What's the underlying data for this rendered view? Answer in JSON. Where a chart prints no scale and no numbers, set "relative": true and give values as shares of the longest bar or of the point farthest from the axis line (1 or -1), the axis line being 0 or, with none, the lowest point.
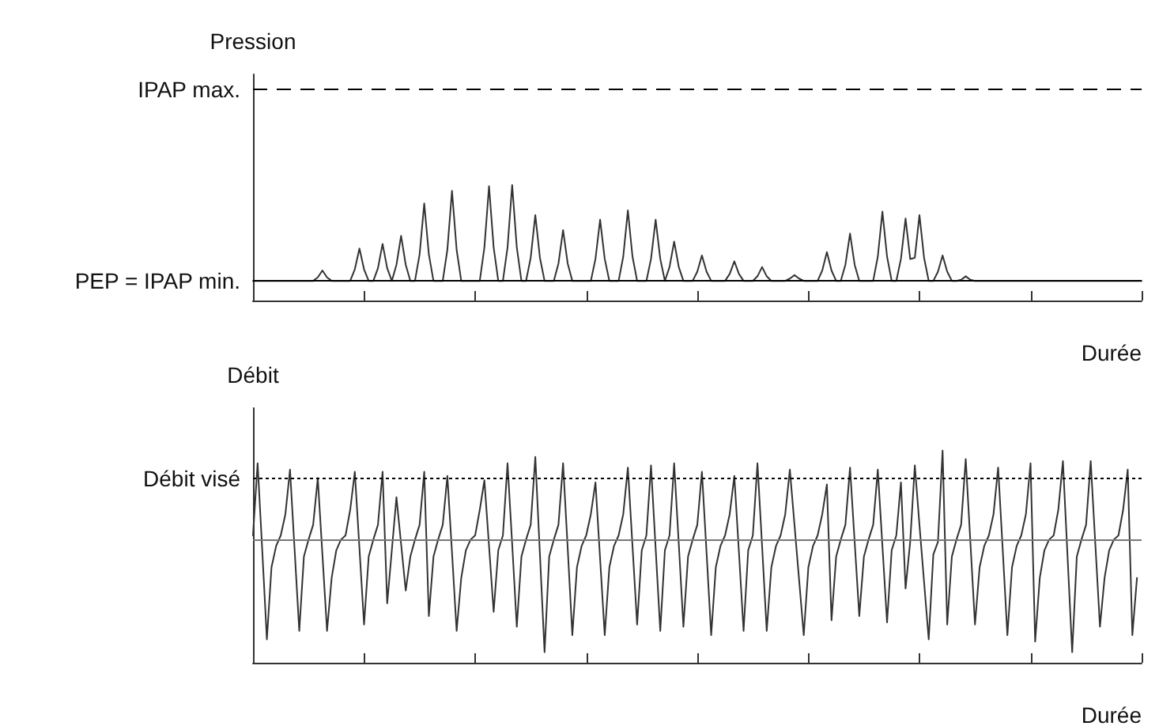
{
  "chart_data": [
    {
      "type": "line",
      "relative": true,
      "ylabel": "Pression",
      "xlabel": "Durée",
      "marker": "none",
      "categories": [
        null,
        null,
        null,
        null,
        null,
        null,
        null,
        null,
        null,
        null,
        null,
        null,
        null,
        null,
        null,
        null,
        null,
        null,
        null,
        null,
        null,
        null,
        null,
        null,
        null,
        null,
        null,
        null,
        null,
        null,
        null,
        null,
        null,
        null,
        null,
        null,
        null,
        null,
        null,
        null,
        null,
        null,
        null,
        null,
        null,
        null,
        null,
        null,
        null,
        null,
        null,
        null,
        null,
        null,
        null,
        null,
        null,
        null,
        null,
        null,
        null,
        null,
        null,
        null,
        null,
        null,
        null,
        null,
        null,
        null,
        null,
        null,
        null,
        null,
        null,
        null,
        null,
        null,
        null,
        null,
        null,
        null,
        null,
        null,
        null,
        null,
        null,
        null,
        null,
        null,
        null,
        null,
        null,
        null,
        null,
        null,
        null,
        null,
        null,
        null,
        null,
        null,
        null,
        null,
        null,
        null,
        null,
        null,
        null,
        null,
        null,
        null,
        null,
        null,
        null,
        null,
        null,
        null,
        null,
        null,
        null,
        null,
        null,
        null,
        null,
        null,
        null,
        null,
        null,
        null,
        null,
        null,
        null,
        null,
        null,
        null,
        null,
        null,
        null,
        null,
        null,
        null,
        null,
        null,
        null,
        null,
        null,
        null,
        null,
        null,
        null,
        null,
        null,
        null,
        null,
        null,
        null,
        null,
        null,
        null,
        null,
        null,
        null,
        null,
        null,
        null,
        null,
        null,
        null,
        null,
        null,
        null,
        null,
        null,
        null,
        null,
        null,
        null,
        null,
        null,
        null,
        null,
        null,
        null,
        null,
        null,
        null,
        null,
        null,
        null,
        null,
        null,
        null
      ],
      "ref_lines": [
        {
          "axis": "y",
          "value": 1.83,
          "label": "IPAP max.",
          "line_style": "dashed",
          "color": "#000000"
        },
        {
          "axis": "y",
          "value": 0.17,
          "label": "PEP = IPAP min.",
          "color": "#000000"
        }
      ],
      "series": [
        {
          "color": "#333333",
          "values": [
            0.17,
            0.17,
            0.17,
            0.17,
            0.17,
            0.17,
            0.17,
            0.17,
            0.17,
            0.17,
            0.17,
            0.17,
            0.17,
            0.17,
            0.2,
            0.26,
            0.2,
            0.17,
            0.17,
            0.17,
            0.17,
            0.17,
            0.27,
            0.45,
            0.27,
            0.17,
            0.17,
            0.28,
            0.49,
            0.28,
            0.17,
            0.31,
            0.56,
            0.31,
            0.17,
            0.17,
            0.4,
            0.84,
            0.4,
            0.17,
            0.17,
            0.17,
            0.44,
            0.95,
            0.44,
            0.17,
            0.17,
            0.17,
            0.17,
            0.17,
            0.46,
            0.99,
            0.46,
            0.17,
            0.17,
            0.46,
            1.0,
            0.46,
            0.17,
            0.17,
            0.37,
            0.74,
            0.37,
            0.17,
            0.17,
            0.17,
            0.32,
            0.61,
            0.32,
            0.17,
            0.17,
            0.17,
            0.17,
            0.17,
            0.36,
            0.7,
            0.36,
            0.17,
            0.17,
            0.17,
            0.38,
            0.78,
            0.38,
            0.17,
            0.17,
            0.17,
            0.36,
            0.7,
            0.36,
            0.17,
            0.29,
            0.51,
            0.29,
            0.17,
            0.17,
            0.17,
            0.25,
            0.39,
            0.25,
            0.17,
            0.17,
            0.17,
            0.17,
            0.23,
            0.34,
            0.23,
            0.17,
            0.17,
            0.17,
            0.21,
            0.29,
            0.21,
            0.17,
            0.17,
            0.17,
            0.17,
            0.19,
            0.22,
            0.19,
            0.17,
            0.17,
            0.17,
            0.17,
            0.26,
            0.42,
            0.26,
            0.17,
            0.17,
            0.31,
            0.58,
            0.31,
            0.17,
            0.17,
            0.17,
            0.17,
            0.38,
            0.77,
            0.38,
            0.17,
            0.17,
            0.36,
            0.71,
            0.36,
            0.37,
            0.74,
            0.37,
            0.17,
            0.17,
            0.25,
            0.39,
            0.25,
            0.17,
            0.17,
            0.18,
            0.21,
            0.18,
            0.17,
            0.17,
            0.17,
            0.17,
            0.17,
            0.17,
            0.17,
            0.17,
            0.17,
            0.17,
            0.17,
            0.17,
            0.17,
            0.17,
            0.17,
            0.17,
            0.17,
            0.17,
            0.17,
            0.17,
            0.17,
            0.17,
            0.17,
            0.17,
            0.17,
            0.17,
            0.17,
            0.17,
            0.17,
            0.17,
            0.17,
            0.17,
            0.17,
            0.17,
            0.17,
            0.17,
            0.17
          ]
        }
      ]
    },
    {
      "type": "line",
      "relative": true,
      "ylabel": "Débit",
      "xlabel": "Durée",
      "marker": "none",
      "categories": [
        null,
        null,
        null,
        null,
        null,
        null,
        null,
        null,
        null,
        null,
        null,
        null,
        null,
        null,
        null,
        null,
        null,
        null,
        null,
        null,
        null,
        null,
        null,
        null,
        null,
        null,
        null,
        null,
        null,
        null,
        null,
        null,
        null,
        null,
        null,
        null,
        null,
        null,
        null,
        null,
        null,
        null,
        null,
        null,
        null,
        null,
        null,
        null,
        null,
        null,
        null,
        null,
        null,
        null,
        null,
        null,
        null,
        null,
        null,
        null,
        null,
        null,
        null,
        null,
        null,
        null,
        null,
        null,
        null,
        null,
        null,
        null,
        null,
        null,
        null,
        null,
        null,
        null,
        null,
        null,
        null,
        null,
        null,
        null,
        null,
        null,
        null,
        null,
        null,
        null,
        null,
        null,
        null,
        null,
        null,
        null,
        null,
        null,
        null,
        null,
        null,
        null,
        null,
        null,
        null,
        null,
        null,
        null,
        null,
        null,
        null,
        null,
        null,
        null,
        null,
        null,
        null,
        null,
        null,
        null,
        null,
        null,
        null,
        null,
        null,
        null,
        null,
        null,
        null,
        null,
        null,
        null,
        null,
        null,
        null,
        null,
        null,
        null,
        null,
        null,
        null,
        null,
        null,
        null,
        null,
        null,
        null,
        null,
        null,
        null,
        null,
        null,
        null,
        null,
        null,
        null,
        null,
        null,
        null,
        null,
        null,
        null,
        null,
        null,
        null,
        null,
        null,
        null,
        null,
        null,
        null,
        null,
        null,
        null,
        null,
        null,
        null,
        null,
        null,
        null,
        null,
        null,
        null,
        null,
        null,
        null,
        null,
        null,
        null,
        null,
        null,
        null,
        null
      ],
      "ref_lines": [
        {
          "axis": "y",
          "value": 0.58,
          "color": "#777777"
        },
        {
          "axis": "y",
          "value": 0.87,
          "label": "Débit visé",
          "line_style": "dotted",
          "color": "#000000"
        }
      ],
      "series": [
        {
          "color": "#333333",
          "values": [
            0.6,
            0.94,
            0.53,
            0.11,
            0.45,
            0.55,
            0.6,
            0.7,
            0.91,
            0.53,
            0.15,
            0.5,
            0.58,
            0.65,
            0.87,
            0.51,
            0.15,
            0.4,
            0.53,
            0.58,
            0.6,
            0.72,
            0.9,
            0.54,
            0.18,
            0.5,
            0.58,
            0.65,
            0.9,
            0.28,
            0.53,
            0.78,
            0.56,
            0.34,
            0.5,
            0.58,
            0.65,
            0.9,
            0.22,
            0.5,
            0.58,
            0.65,
            0.88,
            0.52,
            0.15,
            0.4,
            0.53,
            0.58,
            0.6,
            0.72,
            0.86,
            0.55,
            0.24,
            0.53,
            0.6,
            0.94,
            0.56,
            0.17,
            0.5,
            0.58,
            0.65,
            0.97,
            0.51,
            0.05,
            0.5,
            0.58,
            0.65,
            0.94,
            0.54,
            0.13,
            0.45,
            0.55,
            0.6,
            0.7,
            0.85,
            0.49,
            0.13,
            0.45,
            0.55,
            0.6,
            0.7,
            0.92,
            0.55,
            0.18,
            0.53,
            0.6,
            0.93,
            0.54,
            0.15,
            0.53,
            0.6,
            0.94,
            0.56,
            0.17,
            0.5,
            0.58,
            0.65,
            0.9,
            0.52,
            0.13,
            0.45,
            0.55,
            0.6,
            0.7,
            0.88,
            0.52,
            0.15,
            0.53,
            0.6,
            0.94,
            0.55,
            0.15,
            0.45,
            0.55,
            0.6,
            0.7,
            0.91,
            0.65,
            0.39,
            0.13,
            0.45,
            0.55,
            0.6,
            0.7,
            0.84,
            0.2,
            0.5,
            0.58,
            0.65,
            0.92,
            0.57,
            0.22,
            0.5,
            0.58,
            0.65,
            0.91,
            0.55,
            0.19,
            0.53,
            0.6,
            0.85,
            0.35,
            0.57,
            0.93,
            0.65,
            0.38,
            0.11,
            0.51,
            0.57,
            1.0,
            0.18,
            0.5,
            0.58,
            0.65,
            0.96,
            0.57,
            0.18,
            0.45,
            0.55,
            0.6,
            0.7,
            0.92,
            0.53,
            0.13,
            0.45,
            0.55,
            0.6,
            0.7,
            0.94,
            0.1,
            0.4,
            0.53,
            0.58,
            0.6,
            0.72,
            0.95,
            0.5,
            0.05,
            0.5,
            0.58,
            0.65,
            0.95,
            0.56,
            0.17,
            0.4,
            0.53,
            0.58,
            0.6,
            0.72,
            0.91,
            0.13,
            0.4,
            null
          ]
        }
      ]
    }
  ]
}
